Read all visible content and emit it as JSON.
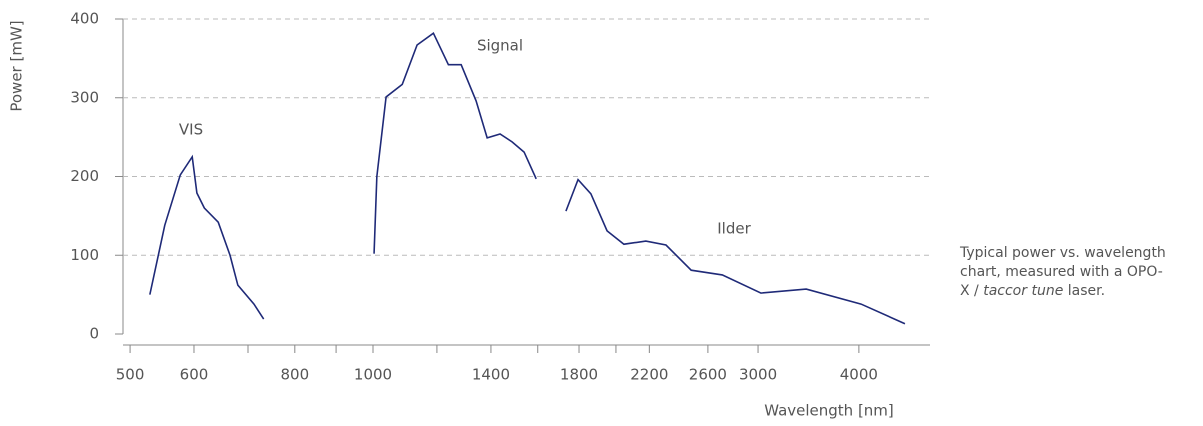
{
  "chart_data": {
    "type": "line",
    "ylabel": "Power [mW]",
    "xlabel": "Wavelength [nm]",
    "xscale": "log",
    "xlim": [
      490,
      4900
    ],
    "xticks": [
      500,
      600,
      800,
      1000,
      1400,
      1800,
      2200,
      2600,
      3000,
      4000
    ],
    "xminorticks": [
      700,
      900,
      1200,
      1600,
      2000
    ],
    "ylim": [
      0,
      400
    ],
    "yticks": [
      0,
      100,
      200,
      300,
      400
    ],
    "grid": true,
    "series": [
      {
        "name": "VIS",
        "color": "#1f2a78",
        "x": [
          529,
          552,
          577,
          597,
          605,
          618,
          643,
          665,
          680,
          712,
          732
        ],
        "values": [
          50,
          138,
          202,
          225,
          179,
          160,
          142,
          100,
          62,
          38,
          19
        ]
      },
      {
        "name": "Signal",
        "color": "#1f2a78",
        "x": [
          1003,
          1011,
          1038,
          1087,
          1134,
          1188,
          1240,
          1286,
          1342,
          1385,
          1437,
          1487,
          1539,
          1593
        ],
        "values": [
          102,
          200,
          301,
          317,
          367,
          382,
          342,
          342,
          296,
          249,
          254,
          244,
          231,
          197
        ]
      },
      {
        "name": "Ilder",
        "color": "#1f2a78",
        "x": [
          1734,
          1795,
          1862,
          1950,
          2046,
          2178,
          2307,
          2479,
          2709,
          3025,
          3442,
          4025,
          4562
        ],
        "values": [
          156,
          196,
          178,
          131,
          114,
          118,
          113,
          81,
          75,
          52,
          57,
          38,
          13
        ]
      }
    ],
    "caption": [
      "Typical power vs. wavelength chart, measured with a OPO-X / ",
      "taccor tune",
      " laser."
    ]
  }
}
